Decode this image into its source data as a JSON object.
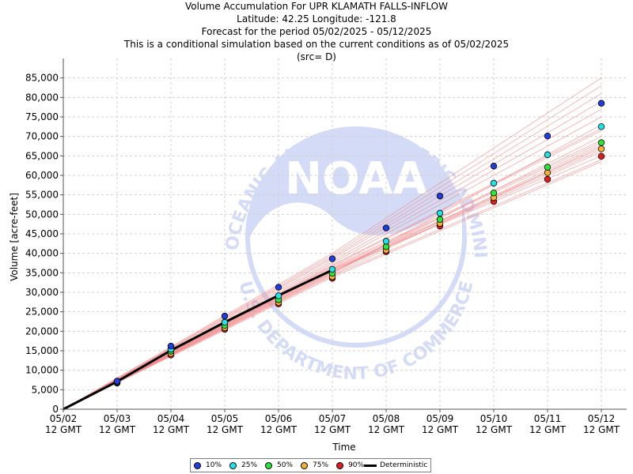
{
  "title": {
    "line1": "Volume Accumulation For UPR KLAMATH FALLS-INFLOW",
    "line2": "Latitude: 42.25 Longitude: -121.8",
    "line3": "Forecast for the period 05/02/2025 - 05/12/2025",
    "line4": "This is a conditional simulation based on the current conditions as of 05/02/2025",
    "line5": "(src= D)"
  },
  "watermark": {
    "logo_text": "NOAA",
    "ring_text_top": "NATIONAL OCEANIC AND ATMOSPHERIC ADMINISTRATION",
    "ring_text_bottom": "U.S. DEPARTMENT OF COMMERCE"
  },
  "chart_data": {
    "type": "line",
    "xlabel": "Time",
    "ylabel": "Volume [acre-feet]",
    "ylim": [
      0,
      90000
    ],
    "yticks": [
      0,
      5000,
      10000,
      15000,
      20000,
      25000,
      30000,
      35000,
      40000,
      45000,
      50000,
      55000,
      60000,
      65000,
      70000,
      75000,
      80000,
      85000
    ],
    "ytick_labels": [
      "0",
      "5,000",
      "10,000",
      "15,000",
      "20,000",
      "25,000",
      "30,000",
      "35,000",
      "40,000",
      "45,000",
      "50,000",
      "55,000",
      "60,000",
      "65,000",
      "70,000",
      "75,000",
      "80,000",
      "85,000"
    ],
    "x_ticks": [
      "05/02\n12 GMT",
      "05/03\n12 GMT",
      "05/04\n12 GMT",
      "05/05\n12 GMT",
      "05/06\n12 GMT",
      "05/07\n12 GMT",
      "05/08\n12 GMT",
      "05/09\n12 GMT",
      "05/10\n12 GMT",
      "05/11\n12 GMT",
      "05/12\n12 GMT"
    ],
    "grid": true,
    "legend_position": "bottom",
    "exceedance_series": [
      {
        "name": "10%",
        "color": "#1f3fe0",
        "x": [
          1,
          2,
          3,
          4,
          5,
          6,
          7,
          8,
          9,
          10
        ],
        "values": [
          7200,
          16200,
          23900,
          31300,
          38600,
          46500,
          54700,
          62400,
          70100,
          78500
        ]
      },
      {
        "name": "25%",
        "color": "#1fe3e8",
        "x": [
          1,
          2,
          3,
          4,
          5,
          6,
          7,
          8,
          9,
          10
        ],
        "values": [
          7000,
          15400,
          22300,
          29100,
          35900,
          43100,
          50300,
          58000,
          65300,
          72500
        ]
      },
      {
        "name": "50%",
        "color": "#2ee63a",
        "x": [
          1,
          2,
          3,
          4,
          5,
          6,
          7,
          8,
          9,
          10
        ],
        "values": [
          6900,
          14900,
          21500,
          28100,
          34900,
          41700,
          48700,
          55500,
          62100,
          68400
        ]
      },
      {
        "name": "75%",
        "color": "#f2b233",
        "x": [
          1,
          2,
          3,
          4,
          5,
          6,
          7,
          8,
          9,
          10
        ],
        "values": [
          6800,
          14300,
          20900,
          27400,
          34000,
          40800,
          47700,
          54300,
          60700,
          66800
        ]
      },
      {
        "name": "90%",
        "color": "#e01f1f",
        "x": [
          1,
          2,
          3,
          4,
          5,
          6,
          7,
          8,
          9,
          10
        ],
        "values": [
          6700,
          13900,
          20500,
          27000,
          33600,
          40400,
          47000,
          53300,
          59000,
          64900
        ]
      }
    ],
    "deterministic": {
      "name": "Deterministic",
      "color": "#000000",
      "x": [
        0,
        1,
        2,
        3,
        4,
        5
      ],
      "values": [
        0,
        7100,
        15100,
        22300,
        29200,
        35700
      ]
    },
    "ensemble_traces": {
      "color": "#f08080",
      "x": [
        0,
        5,
        10
      ],
      "members": [
        [
          0,
          35700,
          65000
        ],
        [
          0,
          35400,
          66000
        ],
        [
          0,
          36000,
          67000
        ],
        [
          0,
          35000,
          68000
        ],
        [
          0,
          36500,
          69000
        ],
        [
          0,
          35200,
          70000
        ],
        [
          0,
          36800,
          71500
        ],
        [
          0,
          34800,
          73000
        ],
        [
          0,
          37500,
          75000
        ],
        [
          0,
          38000,
          77000
        ],
        [
          0,
          38600,
          79000
        ],
        [
          0,
          39000,
          81000
        ],
        [
          0,
          39500,
          83000
        ],
        [
          0,
          40000,
          85000
        ],
        [
          0,
          34300,
          64000
        ],
        [
          0,
          33900,
          63500
        ],
        [
          0,
          36200,
          68500
        ],
        [
          0,
          35800,
          66500
        ],
        [
          0,
          37000,
          72000
        ],
        [
          0,
          34500,
          67500
        ]
      ]
    }
  },
  "legend": {
    "items": [
      {
        "label": "10%",
        "color": "#1f3fe0"
      },
      {
        "label": "25%",
        "color": "#1fe3e8"
      },
      {
        "label": "50%",
        "color": "#2ee63a"
      },
      {
        "label": "75%",
        "color": "#f2b233"
      },
      {
        "label": "90%",
        "color": "#e01f1f"
      }
    ],
    "deterministic_label": "Deterministic"
  }
}
